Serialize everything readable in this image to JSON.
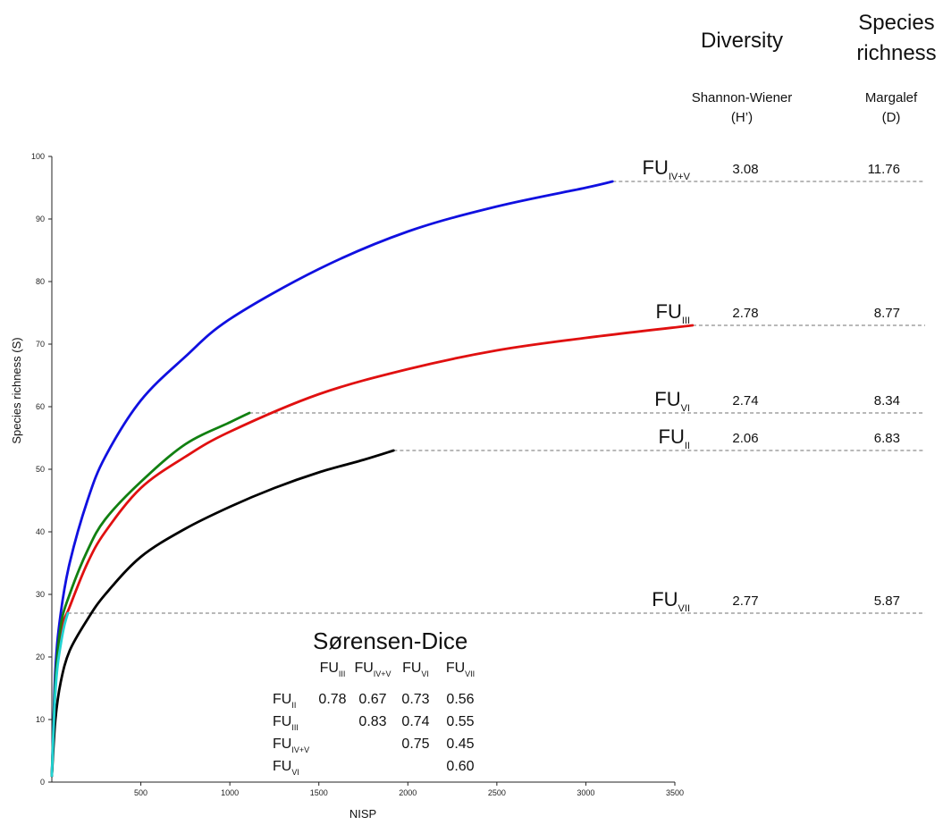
{
  "chart_data": {
    "type": "line",
    "title": "",
    "xlabel": "NISP",
    "ylabel": "Species richness (S)",
    "xlim": [
      0,
      3500
    ],
    "ylim": [
      0,
      100
    ],
    "xticks": [
      500,
      1000,
      1500,
      2000,
      2500,
      3000,
      3500
    ],
    "yticks": [
      0,
      10,
      20,
      30,
      40,
      50,
      60,
      70,
      80,
      90,
      100
    ],
    "grid": false,
    "series": [
      {
        "id": "IV+V",
        "color": "#1010e0",
        "x": [
          0,
          20,
          50,
          100,
          200,
          300,
          500,
          750,
          1000,
          1500,
          2000,
          2500,
          3000,
          3150
        ],
        "y": [
          1,
          18,
          27,
          35,
          45,
          52,
          61,
          68,
          74,
          82,
          88,
          92,
          95,
          96
        ]
      },
      {
        "id": "III",
        "color": "#e01010",
        "x": [
          0,
          20,
          50,
          100,
          200,
          300,
          500,
          750,
          1000,
          1500,
          2000,
          2500,
          3000,
          3600
        ],
        "y": [
          1,
          15,
          24,
          28,
          35,
          40,
          47,
          52,
          56,
          62,
          66,
          69,
          71,
          73
        ]
      },
      {
        "id": "VI",
        "color": "#118011",
        "x": [
          0,
          20,
          50,
          100,
          200,
          300,
          500,
          750,
          1000,
          1110
        ],
        "y": [
          1,
          16,
          25,
          30,
          37,
          42,
          48,
          54,
          57.5,
          59
        ]
      },
      {
        "id": "II",
        "color": "#000000",
        "x": [
          0,
          20,
          50,
          100,
          200,
          300,
          500,
          750,
          1000,
          1250,
          1500,
          1750,
          1920
        ],
        "y": [
          1,
          10,
          16,
          21,
          26,
          30,
          36,
          40.5,
          44,
          47,
          49.5,
          51.5,
          53
        ]
      },
      {
        "id": "VII",
        "color": "#22d3d3",
        "x": [
          0,
          15,
          30,
          50,
          70,
          90
        ],
        "y": [
          1,
          12,
          18,
          22,
          25,
          27
        ]
      }
    ],
    "reference_lines": [
      {
        "id": "IV+V",
        "y": 96,
        "x_start": 3150
      },
      {
        "id": "III",
        "y": 73,
        "x_start": 3600
      },
      {
        "id": "VI",
        "y": 59,
        "x_start": 1110
      },
      {
        "id": "II",
        "y": 53,
        "x_start": 1920
      },
      {
        "id": "VII",
        "y": 27,
        "x_start": 90
      }
    ]
  },
  "headers": {
    "diversity": "Diversity",
    "species_richness_line1": "Species",
    "species_richness_line2": "richness",
    "shannon_line1": "Shannon-Wiener",
    "shannon_line2": "(H’)",
    "margalef_line1": "Margalef",
    "margalef_line2": "(D)"
  },
  "rows": [
    {
      "fu": "FU",
      "sub": "IV+V",
      "shannon": "3.08",
      "margalef": "11.76",
      "y": 96
    },
    {
      "fu": "FU",
      "sub": "III",
      "shannon": "2.78",
      "margalef": "8.77",
      "y": 73
    },
    {
      "fu": "FU",
      "sub": "VI",
      "shannon": "2.74",
      "margalef": "8.34",
      "y": 59
    },
    {
      "fu": "FU",
      "sub": "II",
      "shannon": "2.06",
      "margalef": "6.83",
      "y": 53
    },
    {
      "fu": "FU",
      "sub": "VII",
      "shannon": "2.77",
      "margalef": "5.87",
      "y": 27
    }
  ],
  "sorensen": {
    "title": "Sørensen-Dice",
    "columns": [
      {
        "fu": "FU",
        "sub": "III"
      },
      {
        "fu": "FU",
        "sub": "IV+V"
      },
      {
        "fu": "FU",
        "sub": "VI"
      },
      {
        "fu": "FU",
        "sub": "VII"
      }
    ],
    "rows": [
      {
        "fu": "FU",
        "sub": "II",
        "values": [
          "0.78",
          "0.67",
          "0.73",
          "0.56"
        ]
      },
      {
        "fu": "FU",
        "sub": "III",
        "values": [
          "",
          "0.83",
          "0.74",
          "0.55"
        ]
      },
      {
        "fu": "FU",
        "sub": "IV+V",
        "values": [
          "",
          "",
          "0.75",
          "0.45"
        ]
      },
      {
        "fu": "FU",
        "sub": "VI",
        "values": [
          "",
          "",
          "",
          "0.60"
        ]
      }
    ]
  }
}
